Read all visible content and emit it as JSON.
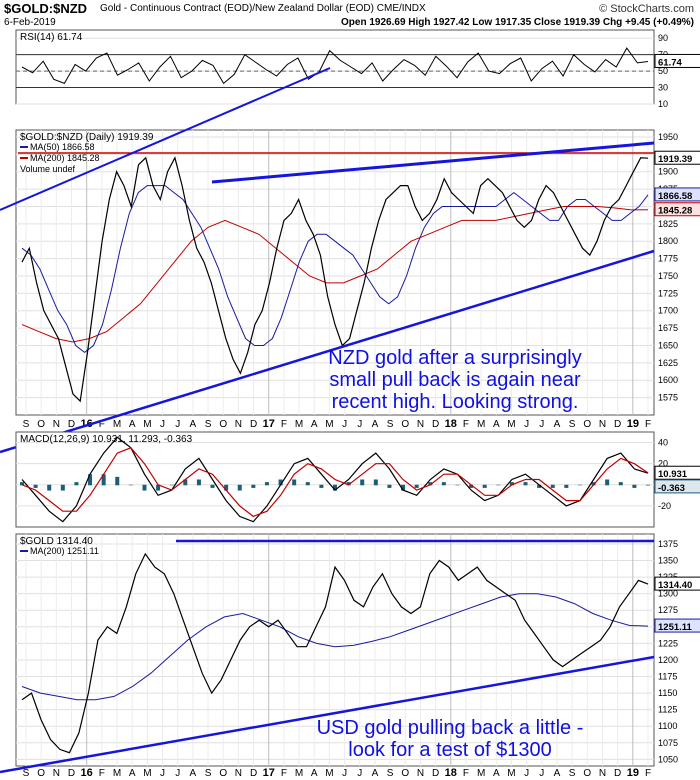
{
  "header": {
    "symbol": "$GOLD:$NZD",
    "description": "Gold - Continuous Contract (EOD)/New Zealand Dollar (EOD)  CME/INDX",
    "date": "6-Feb-2019",
    "ohlc": "Open 1926.69  High 1927.42  Low 1917.35  Close 1919.39  Chg +9.45 (+0.49%)",
    "copyright": "© StockCharts.com"
  },
  "annotations": {
    "nzd_note": [
      "NZD gold after a surprisingly",
      "small pull back is again near",
      "recent high. Looking strong."
    ],
    "usd_note": [
      "USD gold pulling back a little -",
      "look for a test of $1300"
    ]
  },
  "colors": {
    "price": "#000000",
    "ma50": "#1a1aa0",
    "ma200": "#c00000",
    "trend": "#1515dd",
    "hline": "#cc0000",
    "candle_down": "#a00000",
    "macd_hist": "#1a5f7a"
  },
  "chart_data": [
    {
      "id": "rsi",
      "type": "line",
      "title": "RSI(14) 61.74",
      "ylim": [
        10,
        100
      ],
      "y_ticks": [
        "90",
        "70",
        "50",
        "30",
        "10"
      ],
      "value_label": "61.74",
      "levels": [
        70,
        30
      ],
      "series": [
        {
          "name": "RSI(14)",
          "values": [
            55,
            48,
            62,
            40,
            35,
            58,
            50,
            66,
            72,
            45,
            52,
            60,
            38,
            55,
            68,
            42,
            50,
            63,
            57,
            35,
            46,
            70,
            61,
            52,
            44,
            58,
            66,
            40,
            49,
            75,
            63,
            55,
            47,
            60,
            38,
            52,
            64,
            57,
            45,
            68,
            56,
            42,
            61,
            72,
            50,
            47,
            59,
            66,
            38,
            53,
            62,
            44,
            70,
            58,
            49,
            64,
            55,
            78,
            60,
            61.74
          ]
        }
      ]
    },
    {
      "id": "price",
      "type": "line",
      "title": "$GOLD:$NZD (Daily) 1919.39",
      "ylim": [
        1550,
        1960
      ],
      "y_ticks": [
        "1950",
        "1925",
        "1900",
        "1875",
        "1850",
        "1825",
        "1800",
        "1775",
        "1750",
        "1725",
        "1700",
        "1675",
        "1650",
        "1625",
        "1600",
        "1575"
      ],
      "value_labels": [
        "1919.39",
        "1866.58",
        "1845.28"
      ],
      "x_labels": [
        "S",
        "O",
        "N",
        "D",
        "16",
        "F",
        "M",
        "A",
        "M",
        "J",
        "J",
        "A",
        "S",
        "O",
        "N",
        "D",
        "17",
        "F",
        "M",
        "A",
        "M",
        "J",
        "J",
        "A",
        "S",
        "O",
        "N",
        "D",
        "18",
        "F",
        "M",
        "A",
        "M",
        "J",
        "J",
        "A",
        "S",
        "O",
        "N",
        "D",
        "19",
        "F"
      ],
      "legend": [
        "MA(50) 1866.58",
        "MA(200) 1845.28",
        "Volume undef"
      ],
      "series": [
        {
          "name": "$GOLD:$NZD",
          "values": [
            1770,
            1790,
            1740,
            1700,
            1680,
            1660,
            1620,
            1580,
            1570,
            1640,
            1720,
            1800,
            1860,
            1900,
            1880,
            1850,
            1910,
            1920,
            1880,
            1860,
            1900,
            1920,
            1880,
            1830,
            1790,
            1770,
            1740,
            1700,
            1660,
            1630,
            1610,
            1640,
            1680,
            1700,
            1740,
            1790,
            1830,
            1840,
            1860,
            1830,
            1810,
            1780,
            1720,
            1680,
            1650,
            1660,
            1700,
            1740,
            1790,
            1830,
            1860,
            1870,
            1880,
            1880,
            1850,
            1830,
            1840,
            1860,
            1890,
            1870,
            1860,
            1850,
            1840,
            1880,
            1890,
            1880,
            1870,
            1850,
            1830,
            1820,
            1830,
            1860,
            1880,
            1870,
            1850,
            1830,
            1810,
            1790,
            1780,
            1800,
            1830,
            1850,
            1860,
            1880,
            1900,
            1920,
            1919.39
          ]
        },
        {
          "name": "MA(50)",
          "values": [
            1790,
            1780,
            1760,
            1730,
            1700,
            1680,
            1650,
            1640,
            1650,
            1680,
            1730,
            1790,
            1840,
            1870,
            1880,
            1880,
            1880,
            1870,
            1860,
            1840,
            1820,
            1790,
            1760,
            1720,
            1690,
            1660,
            1650,
            1650,
            1660,
            1690,
            1730,
            1770,
            1800,
            1810,
            1810,
            1800,
            1790,
            1780,
            1760,
            1740,
            1720,
            1710,
            1720,
            1750,
            1790,
            1820,
            1840,
            1850,
            1850,
            1850,
            1850,
            1850,
            1850,
            1850,
            1860,
            1870,
            1860,
            1850,
            1840,
            1830,
            1830,
            1850,
            1860,
            1860,
            1850,
            1840,
            1830,
            1830,
            1840,
            1850,
            1866.58
          ]
        },
        {
          "name": "MA(200)",
          "values": [
            1680,
            1670,
            1660,
            1655,
            1660,
            1670,
            1690,
            1710,
            1740,
            1770,
            1800,
            1820,
            1830,
            1820,
            1810,
            1790,
            1770,
            1750,
            1740,
            1740,
            1750,
            1760,
            1780,
            1800,
            1810,
            1820,
            1830,
            1830,
            1830,
            1835,
            1840,
            1845,
            1850,
            1850,
            1850,
            1848,
            1845,
            1845.28
          ]
        }
      ]
    },
    {
      "id": "macd",
      "type": "line",
      "title": "MACD(12,26,9) 10.931, 11.293, -0.363",
      "ylim": [
        -40,
        50
      ],
      "y_ticks": [
        "40",
        "20",
        "0",
        "-20"
      ],
      "value_labels": [
        "10.931",
        "-0.363"
      ],
      "series": [
        {
          "name": "MACD",
          "values": [
            5,
            -10,
            -25,
            -35,
            -20,
            10,
            30,
            45,
            35,
            10,
            -10,
            -5,
            15,
            25,
            5,
            -15,
            -30,
            -35,
            -20,
            0,
            20,
            25,
            10,
            -5,
            5,
            20,
            30,
            15,
            -5,
            -10,
            5,
            15,
            10,
            -5,
            -15,
            -10,
            5,
            10,
            0,
            -10,
            -20,
            -15,
            5,
            25,
            30,
            15,
            10.931
          ]
        },
        {
          "name": "Signal",
          "values": [
            0,
            -5,
            -15,
            -25,
            -25,
            -10,
            10,
            30,
            35,
            20,
            0,
            -5,
            5,
            15,
            10,
            -5,
            -20,
            -30,
            -25,
            -10,
            10,
            20,
            15,
            5,
            0,
            10,
            20,
            20,
            5,
            -5,
            0,
            10,
            10,
            0,
            -10,
            -10,
            0,
            5,
            5,
            -5,
            -15,
            -15,
            0,
            15,
            25,
            20,
            11.293
          ]
        }
      ]
    },
    {
      "id": "usd",
      "type": "line",
      "title": "$GOLD 1314.40",
      "ylim": [
        1040,
        1390
      ],
      "y_ticks": [
        "1375",
        "1350",
        "1325",
        "1300",
        "1275",
        "1250",
        "1225",
        "1200",
        "1175",
        "1150",
        "1125",
        "1100",
        "1075",
        "1050"
      ],
      "value_labels": [
        "1314.40",
        "1251.11"
      ],
      "x_labels": [
        "S",
        "O",
        "N",
        "D",
        "16",
        "F",
        "M",
        "A",
        "M",
        "J",
        "J",
        "A",
        "S",
        "O",
        "N",
        "D",
        "17",
        "F",
        "M",
        "A",
        "M",
        "J",
        "J",
        "A",
        "S",
        "O",
        "N",
        "D",
        "18",
        "F",
        "M",
        "A",
        "M",
        "J",
        "J",
        "A",
        "S",
        "O",
        "N",
        "D",
        "19",
        "F"
      ],
      "legend": [
        "MA(200) 1251.11"
      ],
      "series": [
        {
          "name": "$GOLD",
          "values": [
            1140,
            1150,
            1110,
            1080,
            1065,
            1060,
            1090,
            1150,
            1230,
            1250,
            1240,
            1280,
            1330,
            1360,
            1340,
            1330,
            1300,
            1260,
            1220,
            1180,
            1150,
            1170,
            1200,
            1230,
            1250,
            1260,
            1250,
            1260,
            1240,
            1220,
            1220,
            1250,
            1280,
            1340,
            1320,
            1290,
            1280,
            1310,
            1330,
            1300,
            1280,
            1270,
            1280,
            1330,
            1350,
            1340,
            1320,
            1330,
            1340,
            1320,
            1310,
            1300,
            1290,
            1260,
            1240,
            1220,
            1200,
            1190,
            1200,
            1210,
            1220,
            1230,
            1250,
            1280,
            1300,
            1320,
            1314.4
          ]
        },
        {
          "name": "MA(200)",
          "values": [
            1160,
            1150,
            1145,
            1140,
            1140,
            1145,
            1160,
            1180,
            1205,
            1230,
            1250,
            1265,
            1270,
            1260,
            1250,
            1235,
            1225,
            1220,
            1222,
            1228,
            1235,
            1245,
            1255,
            1265,
            1275,
            1285,
            1295,
            1300,
            1300,
            1295,
            1285,
            1270,
            1260,
            1252,
            1251.11
          ]
        }
      ]
    }
  ]
}
